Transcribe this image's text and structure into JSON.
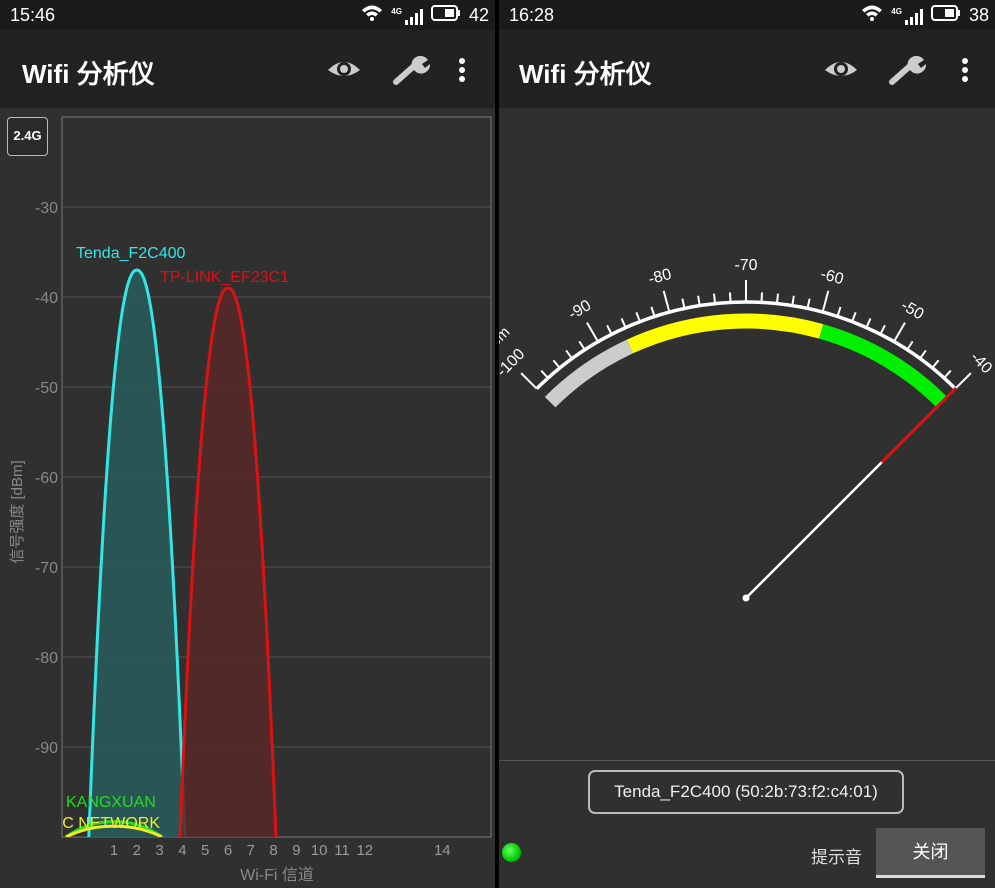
{
  "left": {
    "status": {
      "time": "15:46",
      "network": "4G",
      "battery": "42"
    },
    "toolbar": {
      "title": "Wifi 分析仪",
      "icons": [
        "eye-icon",
        "wrench-icon",
        "more-vert-icon"
      ]
    },
    "band_badge": "2.4G",
    "chart_data": {
      "type": "area",
      "ylabel": "信号强度 [dBm]",
      "xlabel": "Wi-Fi 信道",
      "ylim": [
        -100,
        -20
      ],
      "y_ticks": [
        "-30",
        "-40",
        "-50",
        "-60",
        "-70",
        "-80",
        "-90"
      ],
      "x_ticks": [
        "1",
        "2",
        "3",
        "4",
        "5",
        "6",
        "7",
        "8",
        "9",
        "10",
        "11",
        "12",
        "14"
      ],
      "grid": true,
      "series": [
        {
          "name": "Tenda_F2C400",
          "channel": 2,
          "signal": -37,
          "color": "#33e6e6",
          "fill": "#2a5a5a"
        },
        {
          "name": "TP-LINK_EF23C1",
          "channel": 6,
          "signal": -39,
          "color": "#dd1111",
          "fill": "#562929"
        },
        {
          "name": "KANGXUAN",
          "channel": 1,
          "signal": -98.3,
          "color": "#22dd22",
          "fill": "none"
        },
        {
          "name": "DEC NETWORK",
          "channel": 1,
          "signal": -98.8,
          "color": "#eeee22",
          "fill": "none"
        }
      ]
    }
  },
  "right": {
    "status": {
      "time": "16:28",
      "network": "4G",
      "battery": "38"
    },
    "toolbar": {
      "title": "Wifi 分析仪",
      "icons": [
        "eye-icon",
        "wrench-icon",
        "more-vert-icon"
      ]
    },
    "gauge": {
      "unit": "dBm",
      "min": -100,
      "max": -40,
      "labels": [
        "-100",
        "-90",
        "-80",
        "-70",
        "-60",
        "-50",
        "-40"
      ],
      "bands": [
        {
          "from": -100,
          "to": -86.5,
          "color": "#cccccc"
        },
        {
          "from": -86.5,
          "to": -59.5,
          "color": "#ffff00"
        },
        {
          "from": -59.5,
          "to": -40,
          "color": "#00ee00"
        }
      ],
      "value": -40
    },
    "network_label": "Tenda_F2C400 (50:2b:73:f2:c4:01)",
    "beep_label": "提示音",
    "close_label": "关闭"
  }
}
